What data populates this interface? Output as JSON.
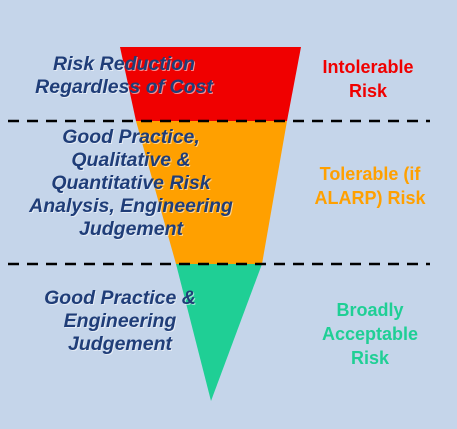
{
  "zones": {
    "top": {
      "left_lines": [
        "Risk Reduction",
        "Regardless of Cost"
      ],
      "right_lines": [
        "Intolerable",
        "Risk"
      ],
      "color": "#f00000"
    },
    "middle": {
      "left_lines": [
        "Good Practice,",
        "Qualitative &",
        "Quantitative Risk",
        "Analysis, Engineering",
        "Judgement"
      ],
      "right_lines": [
        "Tolerable (if",
        "ALARP) Risk"
      ],
      "color": "#ffa000"
    },
    "bottom": {
      "left_lines": [
        "Good Practice &",
        "Engineering",
        "Judgement"
      ],
      "right_lines": [
        "Broadly",
        "Acceptable",
        "Risk"
      ],
      "color": "#1fcf95"
    }
  },
  "colors": {
    "background": "#c5d5ea",
    "left_text": "#1f3d78",
    "divider": "#000000"
  }
}
